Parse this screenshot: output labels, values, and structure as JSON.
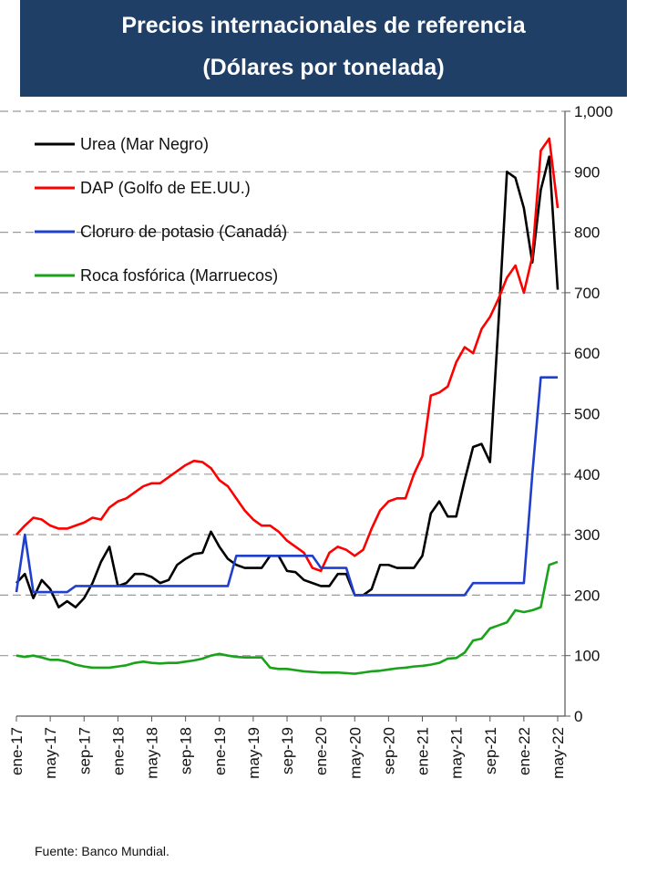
{
  "chart_data": {
    "type": "line",
    "title": "Precios internacionales de referencia",
    "subtitle": "(Dólares por tonelada)",
    "source": "Fuente: Banco Mundial.",
    "categories": [
      "ene-17",
      null,
      null,
      null,
      "may-17",
      null,
      null,
      null,
      "sep-17",
      null,
      null,
      null,
      "ene-18",
      null,
      null,
      null,
      "may-18",
      null,
      null,
      null,
      "sep-18",
      null,
      null,
      null,
      "ene-19",
      null,
      null,
      null,
      "may-19",
      null,
      null,
      null,
      "sep-19",
      null,
      null,
      null,
      "ene-20",
      null,
      null,
      null,
      "may-20",
      null,
      null,
      null,
      "sep-20",
      null,
      null,
      null,
      "ene-21",
      null,
      null,
      null,
      "may-21",
      null,
      null,
      null,
      "sep-21",
      null,
      null,
      null,
      "ene-22",
      null,
      null,
      null,
      "may-22"
    ],
    "series": [
      {
        "name": "Urea (Mar Negro)",
        "color": "#000000",
        "values": [
          220,
          235,
          195,
          225,
          210,
          180,
          190,
          180,
          195,
          220,
          255,
          280,
          215,
          220,
          235,
          235,
          230,
          220,
          225,
          250,
          260,
          268,
          270,
          305,
          280,
          260,
          250,
          245,
          245,
          245,
          265,
          265,
          240,
          238,
          225,
          220,
          215,
          215,
          235,
          235,
          200,
          200,
          210,
          250,
          250,
          245,
          245,
          245,
          265,
          335,
          355,
          330,
          330,
          390,
          445,
          450,
          420,
          650,
          900,
          890,
          840,
          750,
          870,
          925,
          705
        ]
      },
      {
        "name": "DAP (Golfo de EE.UU.)",
        "color": "#ff0000",
        "values": [
          300,
          315,
          328,
          325,
          315,
          310,
          310,
          315,
          320,
          328,
          325,
          345,
          355,
          360,
          370,
          380,
          385,
          385,
          395,
          405,
          415,
          422,
          420,
          410,
          390,
          380,
          360,
          340,
          325,
          315,
          315,
          305,
          290,
          280,
          270,
          245,
          240,
          270,
          280,
          275,
          265,
          275,
          310,
          340,
          355,
          360,
          360,
          400,
          430,
          530,
          535,
          545,
          585,
          610,
          600,
          640,
          660,
          690,
          725,
          745,
          700,
          760,
          935,
          955,
          840
        ]
      },
      {
        "name": "Cloruro de potasio (Canadá)",
        "color": "#1f3fcc",
        "values": [
          205,
          300,
          205,
          205,
          205,
          205,
          205,
          215,
          215,
          215,
          215,
          215,
          215,
          215,
          215,
          215,
          215,
          215,
          215,
          215,
          215,
          215,
          215,
          215,
          215,
          215,
          265,
          265,
          265,
          265,
          265,
          265,
          265,
          265,
          265,
          265,
          245,
          245,
          245,
          245,
          200,
          200,
          200,
          200,
          200,
          200,
          200,
          200,
          200,
          200,
          200,
          200,
          200,
          200,
          220,
          220,
          220,
          220,
          220,
          220,
          220,
          400,
          560,
          560,
          560
        ]
      },
      {
        "name": "Roca fosfórica (Marruecos)",
        "color": "#1aa31a",
        "values": [
          100,
          98,
          100,
          97,
          93,
          93,
          90,
          85,
          82,
          80,
          80,
          80,
          82,
          84,
          88,
          90,
          88,
          87,
          88,
          88,
          90,
          92,
          95,
          100,
          103,
          100,
          98,
          97,
          97,
          97,
          80,
          78,
          78,
          76,
          74,
          73,
          72,
          72,
          72,
          71,
          70,
          72,
          74,
          75,
          77,
          79,
          80,
          82,
          83,
          85,
          88,
          95,
          96,
          105,
          125,
          128,
          145,
          150,
          155,
          175,
          172,
          175,
          180,
          250,
          255
        ]
      }
    ],
    "ylim": [
      0,
      1000
    ],
    "yticks": [
      0,
      100,
      200,
      300,
      400,
      500,
      600,
      700,
      800,
      900,
      {
        "value": 1000,
        "label": "1,000"
      }
    ],
    "grid": true,
    "legend": "upper left"
  }
}
